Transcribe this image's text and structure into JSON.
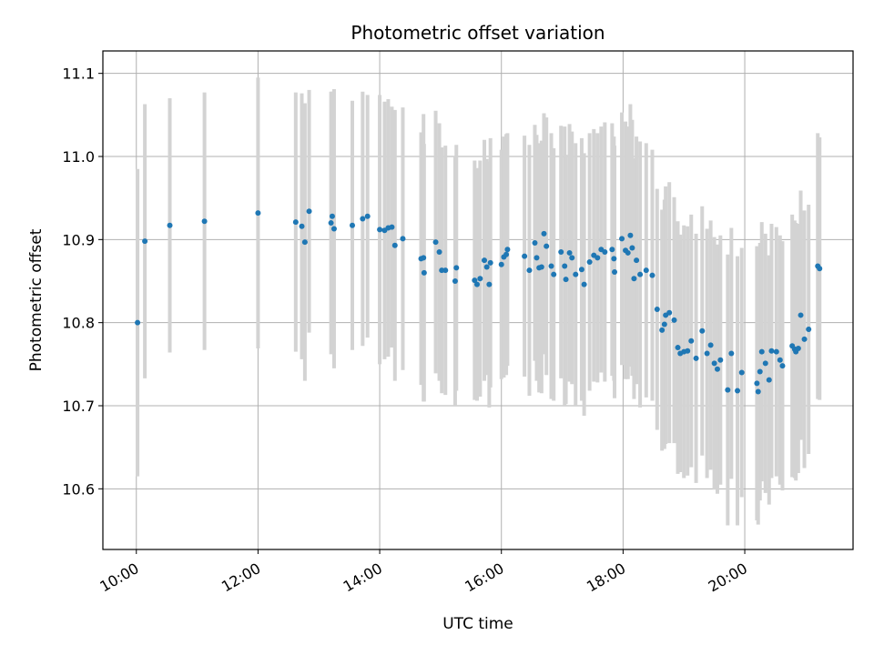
{
  "chart_data": {
    "type": "scatter",
    "title": "Photometric offset variation",
    "xlabel": "UTC time",
    "ylabel": "Photometric offset",
    "xlim": [
      9.45,
      21.78
    ],
    "ylim": [
      10.527,
      11.127
    ],
    "grid": true,
    "x_ticks": [
      {
        "value": 10,
        "label": "10:00"
      },
      {
        "value": 12,
        "label": "12:00"
      },
      {
        "value": 14,
        "label": "14:00"
      },
      {
        "value": 16,
        "label": "16:00"
      },
      {
        "value": 18,
        "label": "18:00"
      },
      {
        "value": 20,
        "label": "20:00"
      }
    ],
    "y_ticks": [
      {
        "value": 10.6,
        "label": "10.6"
      },
      {
        "value": 10.7,
        "label": "10.7"
      },
      {
        "value": 10.8,
        "label": "10.8"
      },
      {
        "value": 10.9,
        "label": "10.9"
      },
      {
        "value": 11.0,
        "label": "11.0"
      },
      {
        "value": 11.1,
        "label": "11.1"
      }
    ],
    "colors": {
      "points": "#1f77b4",
      "errorbars": "#d3d3d3",
      "grid": "#b0b0b0"
    },
    "series": [
      {
        "name": "Photometric offset",
        "points": [
          [
            10.02,
            10.8,
            0.185
          ],
          [
            10.14,
            10.898,
            0.165
          ],
          [
            10.55,
            10.917,
            0.153
          ],
          [
            11.12,
            10.922,
            0.155
          ],
          [
            12.0,
            10.932,
            0.163
          ],
          [
            12.62,
            10.921,
            0.156
          ],
          [
            12.72,
            10.916,
            0.16
          ],
          [
            12.77,
            10.897,
            0.167
          ],
          [
            12.84,
            10.934,
            0.146
          ],
          [
            13.2,
            10.92,
            0.158
          ],
          [
            13.22,
            10.928,
            0.15
          ],
          [
            13.25,
            10.913,
            0.168
          ],
          [
            13.55,
            10.917,
            0.15
          ],
          [
            13.72,
            10.925,
            0.153
          ],
          [
            13.8,
            10.928,
            0.146
          ],
          [
            14.0,
            10.912,
            0.162
          ],
          [
            14.08,
            10.911,
            0.155
          ],
          [
            14.14,
            10.914,
            0.155
          ],
          [
            14.2,
            10.915,
            0.145
          ],
          [
            14.25,
            10.893,
            0.163
          ],
          [
            14.38,
            10.901,
            0.158
          ],
          [
            14.68,
            10.877,
            0.152
          ],
          [
            14.72,
            10.878,
            0.173
          ],
          [
            14.73,
            10.86,
            0.155
          ],
          [
            14.92,
            10.897,
            0.158
          ],
          [
            14.98,
            10.885,
            0.155
          ],
          [
            15.02,
            10.863,
            0.148
          ],
          [
            15.08,
            10.863,
            0.15
          ],
          [
            15.26,
            10.866,
            0.148
          ],
          [
            15.24,
            10.85,
            0.15
          ],
          [
            15.56,
            10.851,
            0.144
          ],
          [
            15.6,
            10.846,
            0.14
          ],
          [
            15.65,
            10.853,
            0.142
          ],
          [
            15.72,
            10.875,
            0.145
          ],
          [
            15.76,
            10.867,
            0.13
          ],
          [
            15.82,
            10.872,
            0.15
          ],
          [
            15.8,
            10.846,
            0.148
          ],
          [
            16.0,
            10.87,
            0.138
          ],
          [
            16.04,
            10.879,
            0.145
          ],
          [
            16.08,
            10.882,
            0.145
          ],
          [
            16.1,
            10.888,
            0.14
          ],
          [
            16.38,
            10.88,
            0.145
          ],
          [
            16.46,
            10.863,
            0.151
          ],
          [
            16.55,
            10.896,
            0.142
          ],
          [
            16.58,
            10.878,
            0.148
          ],
          [
            16.62,
            10.866,
            0.15
          ],
          [
            16.66,
            10.867,
            0.152
          ],
          [
            16.7,
            10.907,
            0.145
          ],
          [
            16.74,
            10.892,
            0.155
          ],
          [
            16.82,
            10.868,
            0.16
          ],
          [
            16.86,
            10.858,
            0.152
          ],
          [
            16.98,
            10.885,
            0.152
          ],
          [
            17.04,
            10.868,
            0.168
          ],
          [
            17.06,
            10.852,
            0.15
          ],
          [
            17.12,
            10.884,
            0.155
          ],
          [
            17.16,
            10.878,
            0.152
          ],
          [
            17.22,
            10.858,
            0.158
          ],
          [
            17.32,
            10.864,
            0.158
          ],
          [
            17.36,
            10.846,
            0.158
          ],
          [
            17.45,
            10.873,
            0.155
          ],
          [
            17.52,
            10.881,
            0.152
          ],
          [
            17.58,
            10.878,
            0.15
          ],
          [
            17.64,
            10.888,
            0.148
          ],
          [
            17.7,
            10.885,
            0.156
          ],
          [
            17.82,
            10.888,
            0.152
          ],
          [
            17.85,
            10.877,
            0.147
          ],
          [
            17.86,
            10.861,
            0.152
          ],
          [
            17.98,
            10.901,
            0.152
          ],
          [
            18.04,
            10.887,
            0.155
          ],
          [
            18.08,
            10.884,
            0.152
          ],
          [
            18.12,
            10.905,
            0.158
          ],
          [
            18.15,
            10.89,
            0.154
          ],
          [
            18.18,
            10.853,
            0.145
          ],
          [
            18.22,
            10.875,
            0.149
          ],
          [
            18.28,
            10.858,
            0.16
          ],
          [
            18.38,
            10.863,
            0.153
          ],
          [
            18.48,
            10.857,
            0.151
          ],
          [
            18.56,
            10.816,
            0.145
          ],
          [
            18.64,
            10.791,
            0.145
          ],
          [
            18.68,
            10.798,
            0.15
          ],
          [
            18.7,
            10.809,
            0.155
          ],
          [
            18.76,
            10.812,
            0.157
          ],
          [
            18.84,
            10.803,
            0.148
          ],
          [
            18.9,
            10.77,
            0.152
          ],
          [
            18.94,
            10.763,
            0.143
          ],
          [
            19.0,
            10.765,
            0.152
          ],
          [
            19.06,
            10.766,
            0.15
          ],
          [
            19.12,
            10.778,
            0.152
          ],
          [
            19.2,
            10.757,
            0.15
          ],
          [
            19.3,
            10.79,
            0.15
          ],
          [
            19.38,
            10.763,
            0.15
          ],
          [
            19.44,
            10.773,
            0.15
          ],
          [
            19.5,
            10.751,
            0.152
          ],
          [
            19.55,
            10.744,
            0.15
          ],
          [
            19.6,
            10.755,
            0.15
          ],
          [
            19.72,
            10.719,
            0.163
          ],
          [
            19.78,
            10.763,
            0.151
          ],
          [
            19.88,
            10.718,
            0.162
          ],
          [
            19.95,
            10.74,
            0.15
          ],
          [
            20.2,
            10.727,
            0.165
          ],
          [
            20.22,
            10.717,
            0.16
          ],
          [
            20.25,
            10.741,
            0.155
          ],
          [
            20.28,
            10.765,
            0.156
          ],
          [
            20.34,
            10.751,
            0.156
          ],
          [
            20.4,
            10.731,
            0.15
          ],
          [
            20.44,
            10.766,
            0.153
          ],
          [
            20.52,
            10.765,
            0.15
          ],
          [
            20.58,
            10.755,
            0.15
          ],
          [
            20.62,
            10.748,
            0.15
          ],
          [
            20.78,
            10.772,
            0.158
          ],
          [
            20.82,
            10.768,
            0.155
          ],
          [
            20.84,
            10.765,
            0.155
          ],
          [
            20.88,
            10.769,
            0.15
          ],
          [
            20.92,
            10.809,
            0.15
          ],
          [
            20.98,
            10.78,
            0.155
          ],
          [
            21.05,
            10.792,
            0.15
          ],
          [
            21.2,
            10.868,
            0.16
          ],
          [
            21.23,
            10.865,
            0.158
          ]
        ]
      }
    ]
  }
}
